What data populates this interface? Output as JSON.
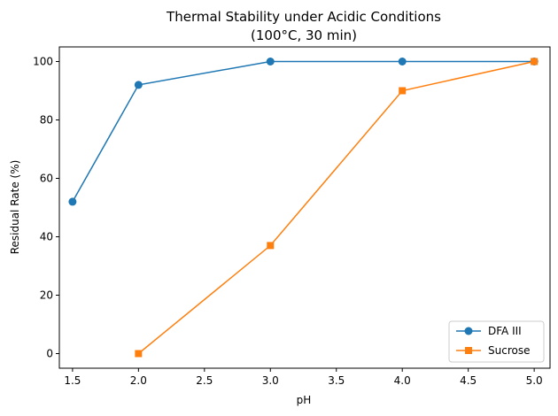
{
  "chart_data": {
    "type": "line",
    "title_lines": [
      "Thermal Stability under Acidic Conditions",
      "(100°C, 30 min)"
    ],
    "xlabel": "pH",
    "ylabel": "Residual Rate (%)",
    "xlim": [
      1.4,
      5.12
    ],
    "ylim": [
      -5,
      105
    ],
    "xticks": [
      1.5,
      2.0,
      2.5,
      3.0,
      3.5,
      4.0,
      4.5,
      5.0
    ],
    "xtick_labels": [
      "1.5",
      "2.0",
      "2.5",
      "3.0",
      "3.5",
      "4.0",
      "4.5",
      "5.0"
    ],
    "yticks": [
      0,
      20,
      40,
      60,
      80,
      100
    ],
    "ytick_labels": [
      "0",
      "20",
      "40",
      "60",
      "80",
      "100"
    ],
    "grid": false,
    "legend_position": "bottom-right",
    "series": [
      {
        "name": "DFA III",
        "color": "#1f77b4",
        "marker": "circle",
        "x": [
          1.5,
          2.0,
          3.0,
          4.0,
          5.0
        ],
        "y": [
          52,
          92,
          100,
          100,
          100
        ]
      },
      {
        "name": "Sucrose",
        "color": "#ff7f0e",
        "marker": "square",
        "x": [
          2.0,
          3.0,
          4.0,
          5.0
        ],
        "y": [
          0,
          37,
          90,
          100
        ]
      }
    ]
  }
}
